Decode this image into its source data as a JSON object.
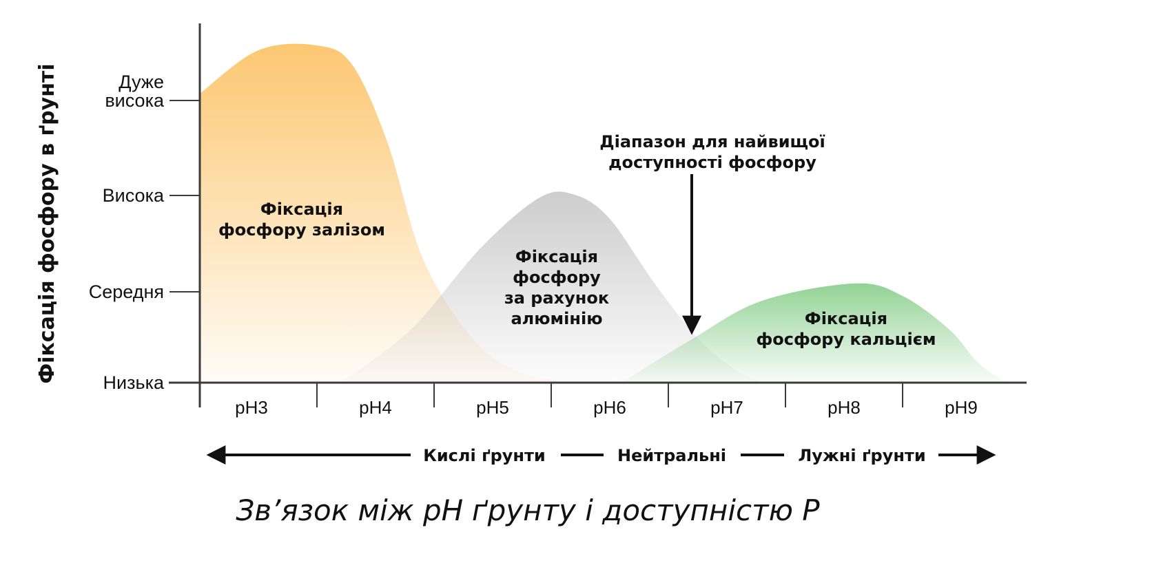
{
  "chart_data": {
    "type": "area",
    "title": "Зв’язок між pH ґрунту і доступністю P",
    "ylabel": "Фіксація фосфору в ґрунті",
    "xlabel": "",
    "categories": [
      "pH3",
      "pH4",
      "pH5",
      "pH6",
      "pH7",
      "pH8",
      "pH9"
    ],
    "x_range": [
      3,
      10
    ],
    "y_range": [
      0,
      3.6
    ],
    "y_levels": [
      {
        "value": 0,
        "label": [
          "Низька"
        ]
      },
      {
        "value": 1,
        "label": [
          "Середня"
        ]
      },
      {
        "value": 2,
        "label": [
          "Висока"
        ]
      },
      {
        "value": 3,
        "label": [
          "Дуже",
          "висока"
        ]
      }
    ],
    "series": [
      {
        "label": [
          "Фіксація",
          "фосфору залізом"
        ],
        "color": "#fcc46a",
        "points": [
          [
            3.0,
            3.0
          ],
          [
            3.5,
            3.45
          ],
          [
            4.0,
            3.5
          ],
          [
            4.3,
            3.3
          ],
          [
            4.6,
            2.5
          ],
          [
            4.9,
            1.3
          ],
          [
            5.3,
            0.5
          ],
          [
            5.7,
            0.12
          ],
          [
            6.2,
            0.0
          ]
        ]
      },
      {
        "label": [
          "Фіксація",
          "фосфору",
          "за рахунок",
          "алюмінію"
        ],
        "color": "#c4c4c4",
        "points": [
          [
            4.2,
            0.0
          ],
          [
            4.8,
            0.55
          ],
          [
            5.4,
            1.4
          ],
          [
            5.9,
            1.92
          ],
          [
            6.2,
            1.95
          ],
          [
            6.5,
            1.7
          ],
          [
            6.9,
            1.0
          ],
          [
            7.3,
            0.4
          ],
          [
            7.7,
            0.05
          ],
          [
            8.0,
            0.0
          ]
        ]
      },
      {
        "label": [
          "Фіксація",
          "фосфору кальцієм"
        ],
        "color": "#7fca82",
        "points": [
          [
            6.6,
            0.0
          ],
          [
            7.2,
            0.45
          ],
          [
            7.8,
            0.85
          ],
          [
            8.6,
            1.03
          ],
          [
            9.0,
            0.9
          ],
          [
            9.4,
            0.55
          ],
          [
            9.65,
            0.2
          ],
          [
            9.9,
            0.0
          ]
        ]
      }
    ],
    "annotation": {
      "text": [
        "Діапазон для найвищої",
        "доступності фосфору"
      ],
      "x": 7.2,
      "y_from": 2.15,
      "y_to": 0.55
    },
    "soil_types": {
      "acid": "Кислі ґрунти",
      "neutral": "Нейтральні",
      "alkaline": "Лужні ґрунти"
    }
  }
}
